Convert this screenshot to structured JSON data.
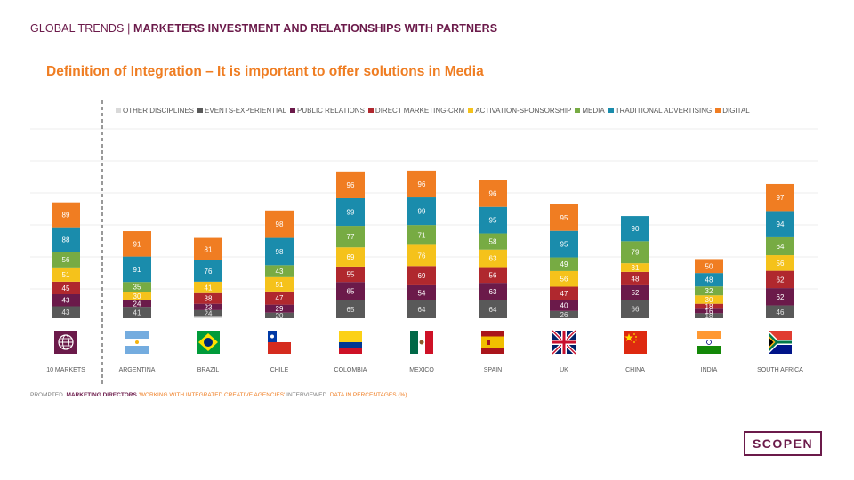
{
  "header": {
    "prefix": "GLOBAL TRENDS | ",
    "title": "MARKETERS INVESTMENT AND RELATIONSHIPS WITH PARTNERS"
  },
  "subtitle": "Definition of Integration – It is important to offer solutions in Media",
  "footnote": {
    "part1": "PROMPTED. ",
    "part2": "MARKETING DIRECTORS ",
    "part3": "'WORKING WITH INTEGRATED CREATIVE AGENCIES'",
    "part4": " INTERVIEWED. ",
    "part5": "DATA IN PERCENTAGES (%)."
  },
  "logo": "SCOPEN",
  "chart_data": {
    "type": "bar",
    "stacked": true,
    "title": "Definition of Integration – It is important to offer solutions in Media",
    "legend_position": "top",
    "categories": [
      "10 MARKETS",
      "ARGENTINA",
      "BRAZIL",
      "CHILE",
      "COLOMBIA",
      "MEXICO",
      "SPAIN",
      "UK",
      "CHINA",
      "INDIA",
      "SOUTH AFRICA"
    ],
    "series": [
      {
        "name": "OTHER DISCIPLINES",
        "color": "#d9d9d9",
        "values": [
          null,
          null,
          5,
          null,
          null,
          null,
          null,
          null,
          null,
          null,
          null
        ]
      },
      {
        "name": "EVENTS-EXPERIENTIAL",
        "color": "#595959",
        "values": [
          43,
          41,
          24,
          20,
          65,
          64,
          64,
          26,
          66,
          18,
          46
        ]
      },
      {
        "name": "PUBLIC RELATIONS",
        "color": "#6b1a4a",
        "values": [
          43,
          24,
          23,
          29,
          65,
          54,
          63,
          40,
          52,
          16,
          62
        ]
      },
      {
        "name": "DIRECT MARKETING-CRM",
        "color": "#b0282e",
        "values": [
          45,
          null,
          38,
          47,
          55,
          69,
          56,
          47,
          48,
          18,
          62
        ]
      },
      {
        "name": "ACTIVATION-SPONSORSHIP",
        "color": "#f5c21b",
        "values": [
          51,
          30,
          41,
          51,
          69,
          76,
          63,
          56,
          31,
          30,
          56
        ]
      },
      {
        "name": "MEDIA",
        "color": "#77ab43",
        "values": [
          56,
          35,
          null,
          43,
          77,
          71,
          58,
          49,
          79,
          32,
          64
        ]
      },
      {
        "name": "TRADITIONAL ADVERTISING",
        "color": "#1a8cac",
        "values": [
          88,
          91,
          76,
          98,
          99,
          99,
          95,
          95,
          90,
          48,
          94
        ]
      },
      {
        "name": "DIGITAL",
        "color": "#f07d22",
        "values": [
          89,
          91,
          81,
          98,
          96,
          96,
          96,
          95,
          null,
          50,
          97
        ]
      }
    ]
  },
  "icons": [
    "globe-icon",
    "argentina-flag-icon",
    "brazil-flag-icon",
    "chile-flag-icon",
    "colombia-flag-icon",
    "mexico-flag-icon",
    "spain-flag-icon",
    "uk-flag-icon",
    "china-flag-icon",
    "india-flag-icon",
    "south-africa-flag-icon"
  ]
}
